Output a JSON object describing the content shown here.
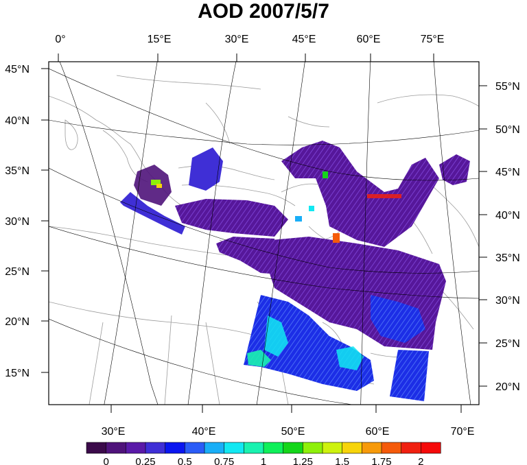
{
  "title": "AOD 2007/5/7",
  "top_axis_labels": [
    "0°",
    "15°E",
    "30°E",
    "45°E",
    "60°E",
    "75°E"
  ],
  "bottom_axis_labels": [
    "30°E",
    "40°E",
    "50°E",
    "60°E",
    "70°E"
  ],
  "left_axis_labels": [
    "45°N",
    "40°N",
    "35°N",
    "30°N",
    "25°N",
    "20°N",
    "15°N"
  ],
  "right_axis_labels": [
    "55°N",
    "50°N",
    "45°N",
    "40°N",
    "35°N",
    "30°N",
    "25°N",
    "20°N"
  ],
  "colorbar": {
    "labels": [
      "0",
      "0.25",
      "0.5",
      "0.75",
      "1",
      "1.25",
      "1.5",
      "1.75",
      "2"
    ],
    "colors": [
      "#3b0a4a",
      "#4f137a",
      "#5a1aa8",
      "#3f2fd6",
      "#0a16f0",
      "#2a5cf7",
      "#19aef7",
      "#12e8f2",
      "#19f2b0",
      "#0ff05a",
      "#14d61a",
      "#8ef00a",
      "#cdf20e",
      "#f7d40a",
      "#f79a0a",
      "#f55a0a",
      "#f02010",
      "#f50a0a"
    ]
  },
  "colors": {
    "low": "#4f137a",
    "mid": "#2a5cf7",
    "high": "#12e8f2",
    "coast": "#9a9a9a",
    "grid": "#000000"
  }
}
